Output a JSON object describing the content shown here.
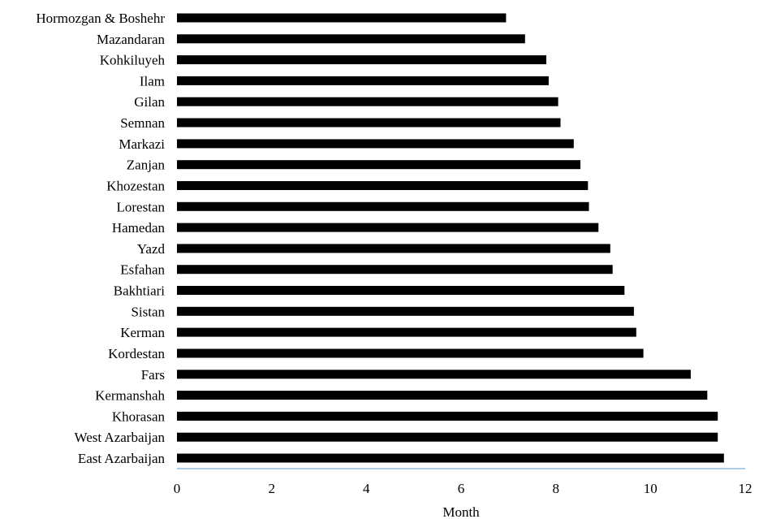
{
  "chart_data": {
    "type": "bar",
    "orientation": "horizontal",
    "categories": [
      "Hormozgan & Boshehr",
      "Mazandaran",
      "Kohkiluyeh",
      "Ilam",
      "Gilan",
      "Semnan",
      "Markazi",
      "Zanjan",
      "Khozestan",
      "Lorestan",
      "Hamedan",
      "Yazd",
      "Esfahan",
      "Bakhtiari",
      "Sistan",
      "Kerman",
      "Kordestan",
      "Fars",
      "Kermanshah",
      "Khorasan",
      "West Azarbaijan",
      "East Azarbaijan"
    ],
    "values": [
      6.95,
      7.35,
      7.8,
      7.85,
      8.05,
      8.1,
      8.38,
      8.52,
      8.68,
      8.7,
      8.9,
      9.15,
      9.2,
      9.45,
      9.65,
      9.7,
      9.85,
      10.85,
      11.2,
      11.42,
      11.42,
      11.55
    ],
    "xlabel": "Month",
    "ylabel": "",
    "title": "",
    "xlim": [
      0,
      12
    ],
    "xticks": [
      0,
      2,
      4,
      6,
      8,
      10,
      12
    ],
    "grid": false,
    "legend": "none",
    "colors": {
      "bar": "#000000",
      "axis": "#7fb0d8"
    }
  }
}
